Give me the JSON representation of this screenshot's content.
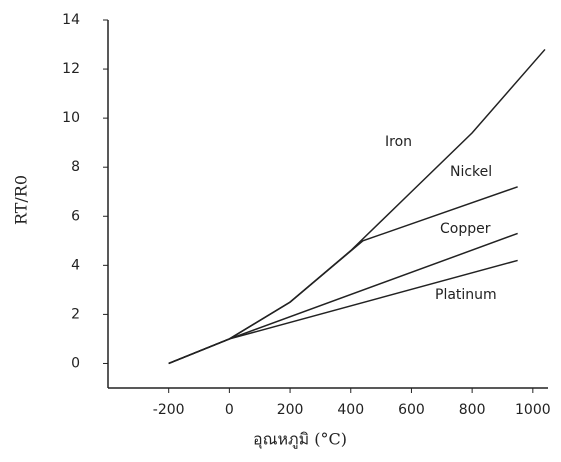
{
  "chart_data": {
    "type": "line",
    "xlabel": "อุณหภูมิ (°C)",
    "ylabel": "RT/R0",
    "xlim": [
      -400,
      1050
    ],
    "ylim": [
      -1,
      14
    ],
    "xticks": [
      -200,
      0,
      200,
      400,
      600,
      800,
      1000
    ],
    "yticks": [
      0,
      2,
      4,
      6,
      8,
      10,
      12,
      14
    ],
    "series": [
      {
        "name": "Iron",
        "color": "#222222",
        "x": [
          -200,
          0,
          200,
          400,
          600,
          800,
          1040
        ],
        "values": [
          0,
          1,
          2.5,
          4.6,
          7.0,
          9.4,
          12.8
        ]
      },
      {
        "name": "Nickel",
        "color": "#222222",
        "x": [
          -200,
          0,
          200,
          440,
          950
        ],
        "values": [
          0,
          1,
          2.5,
          5.0,
          7.2
        ]
      },
      {
        "name": "Copper",
        "color": "#222222",
        "x": [
          -200,
          0,
          950
        ],
        "values": [
          0,
          1,
          5.3
        ]
      },
      {
        "name": "Platinum",
        "color": "#222222",
        "x": [
          -200,
          0,
          950
        ],
        "values": [
          0,
          1,
          4.2
        ]
      }
    ]
  }
}
